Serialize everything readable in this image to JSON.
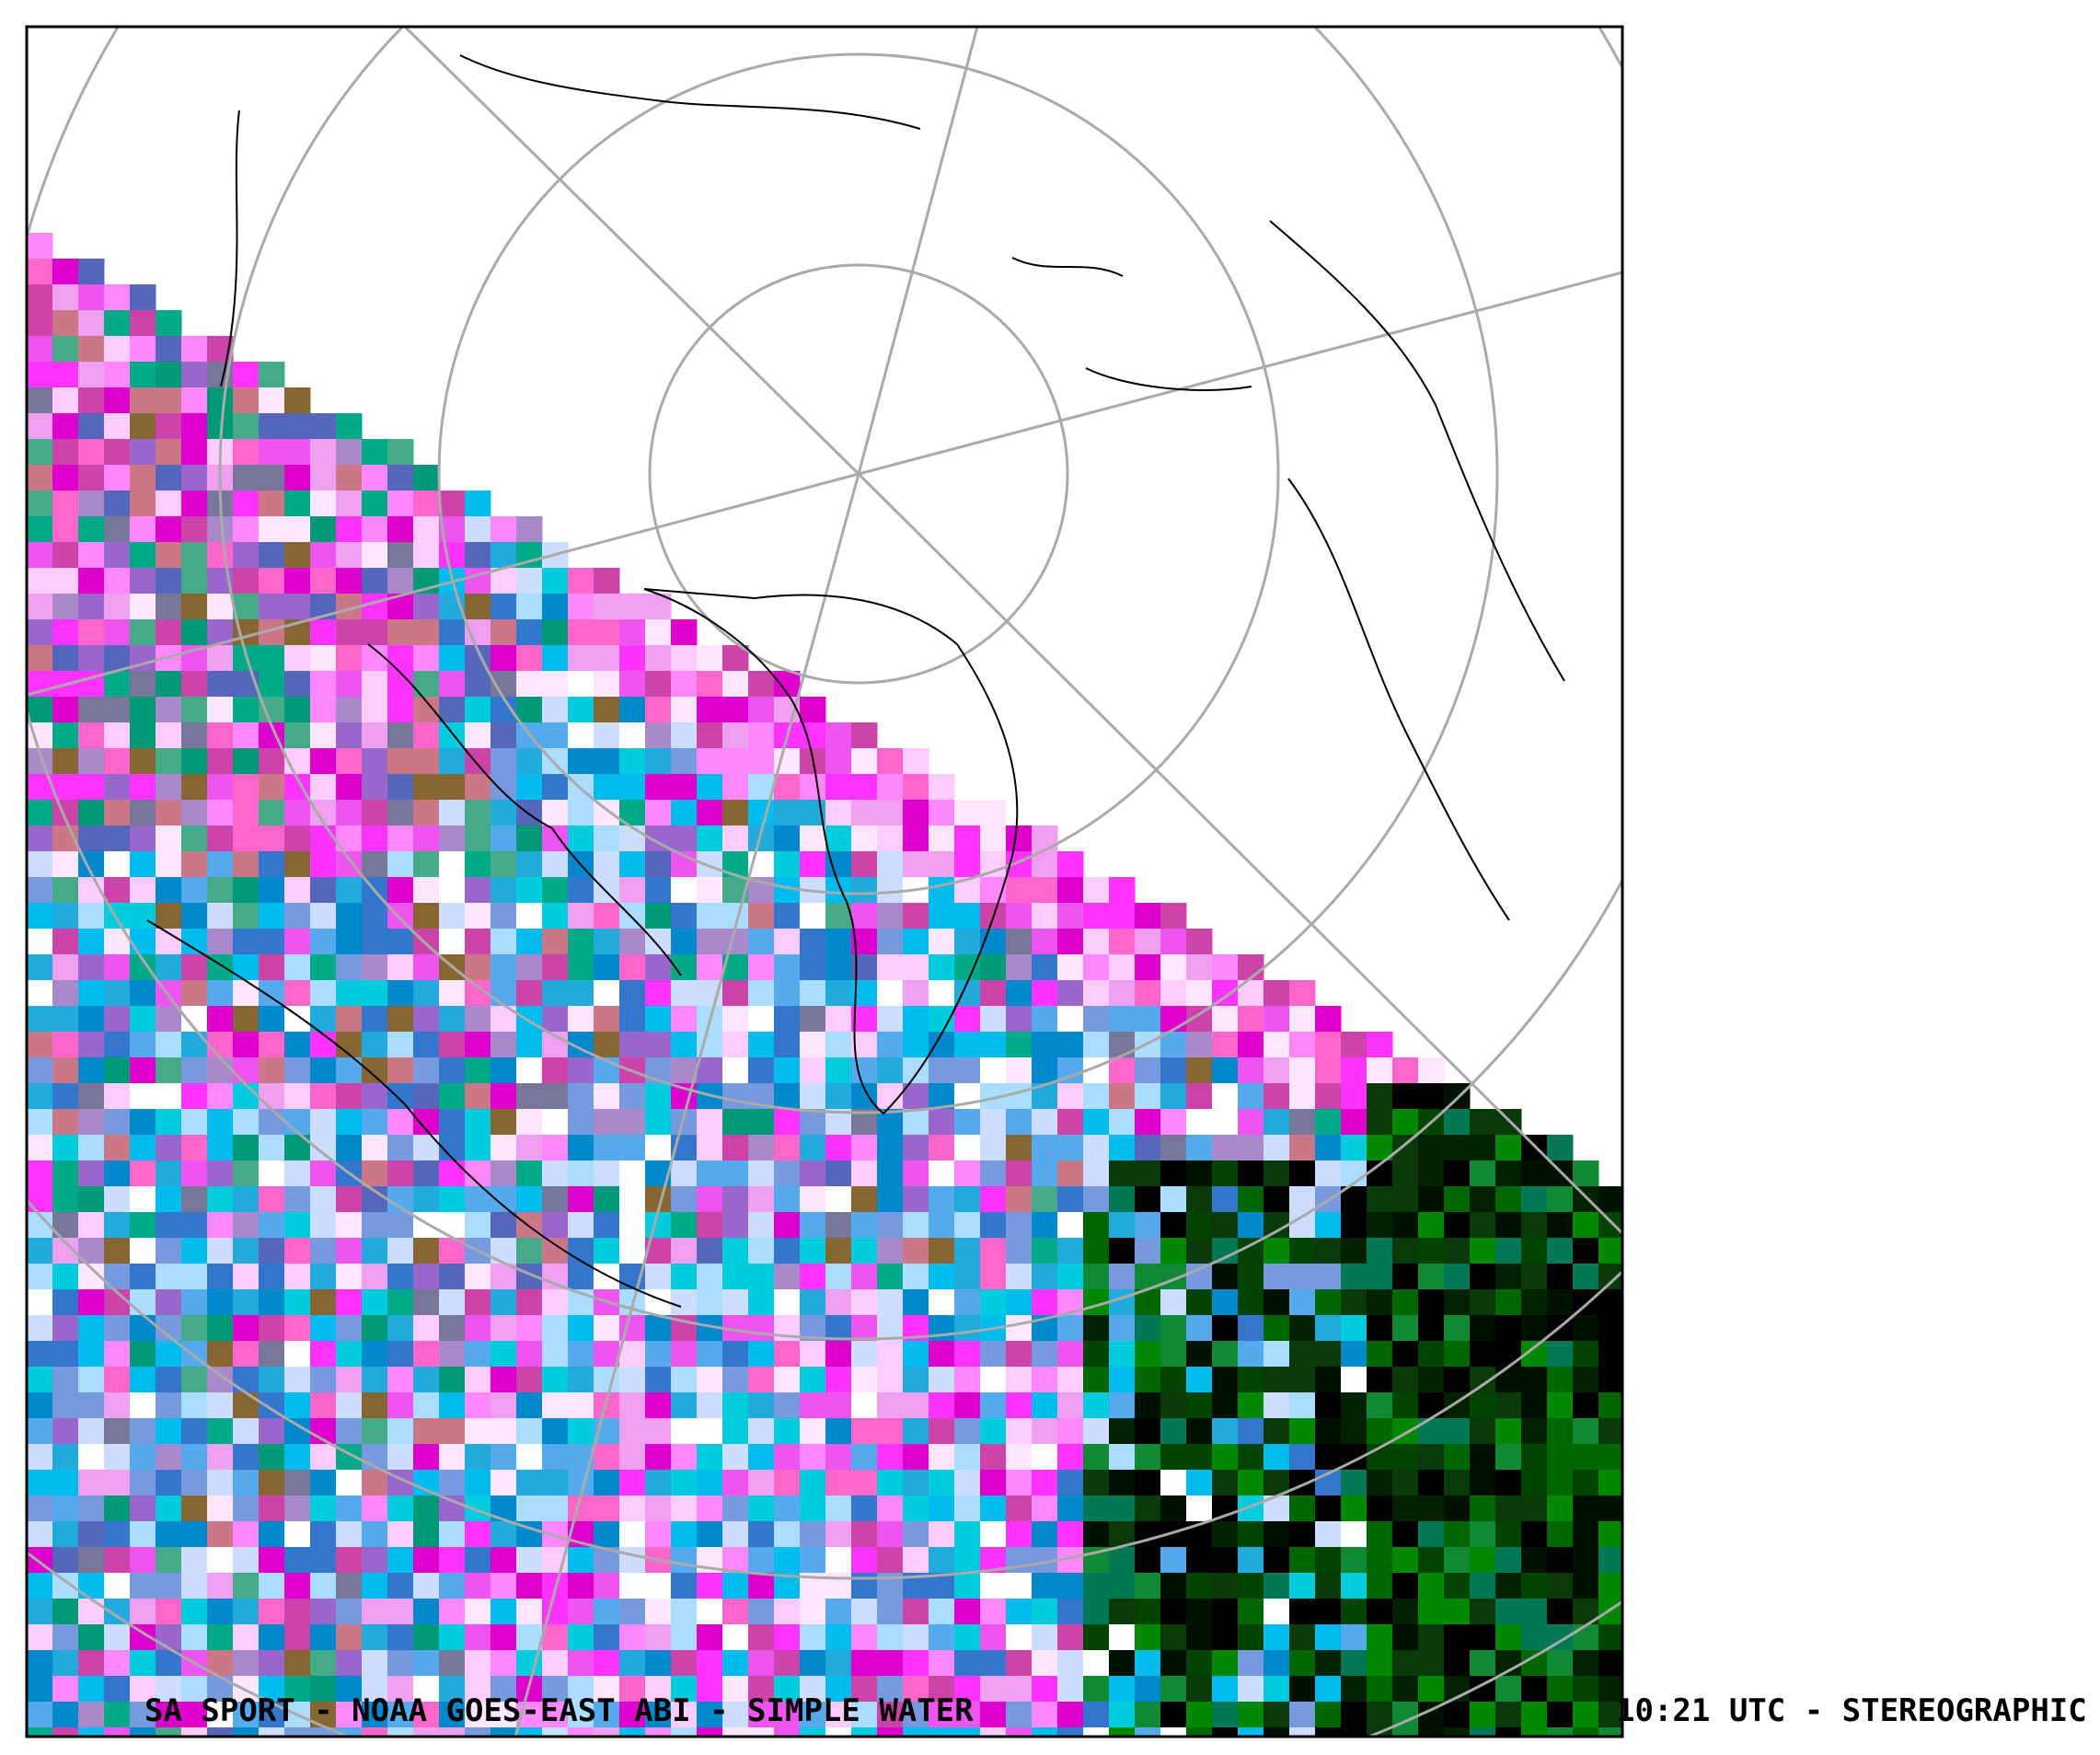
{
  "caption": {
    "left": "SA SPORT  -  NOAA GOES-EAST ABI  -  SIMPLE WATER",
    "right": "10:21 UTC - STEREOGRAPHIC"
  }
}
